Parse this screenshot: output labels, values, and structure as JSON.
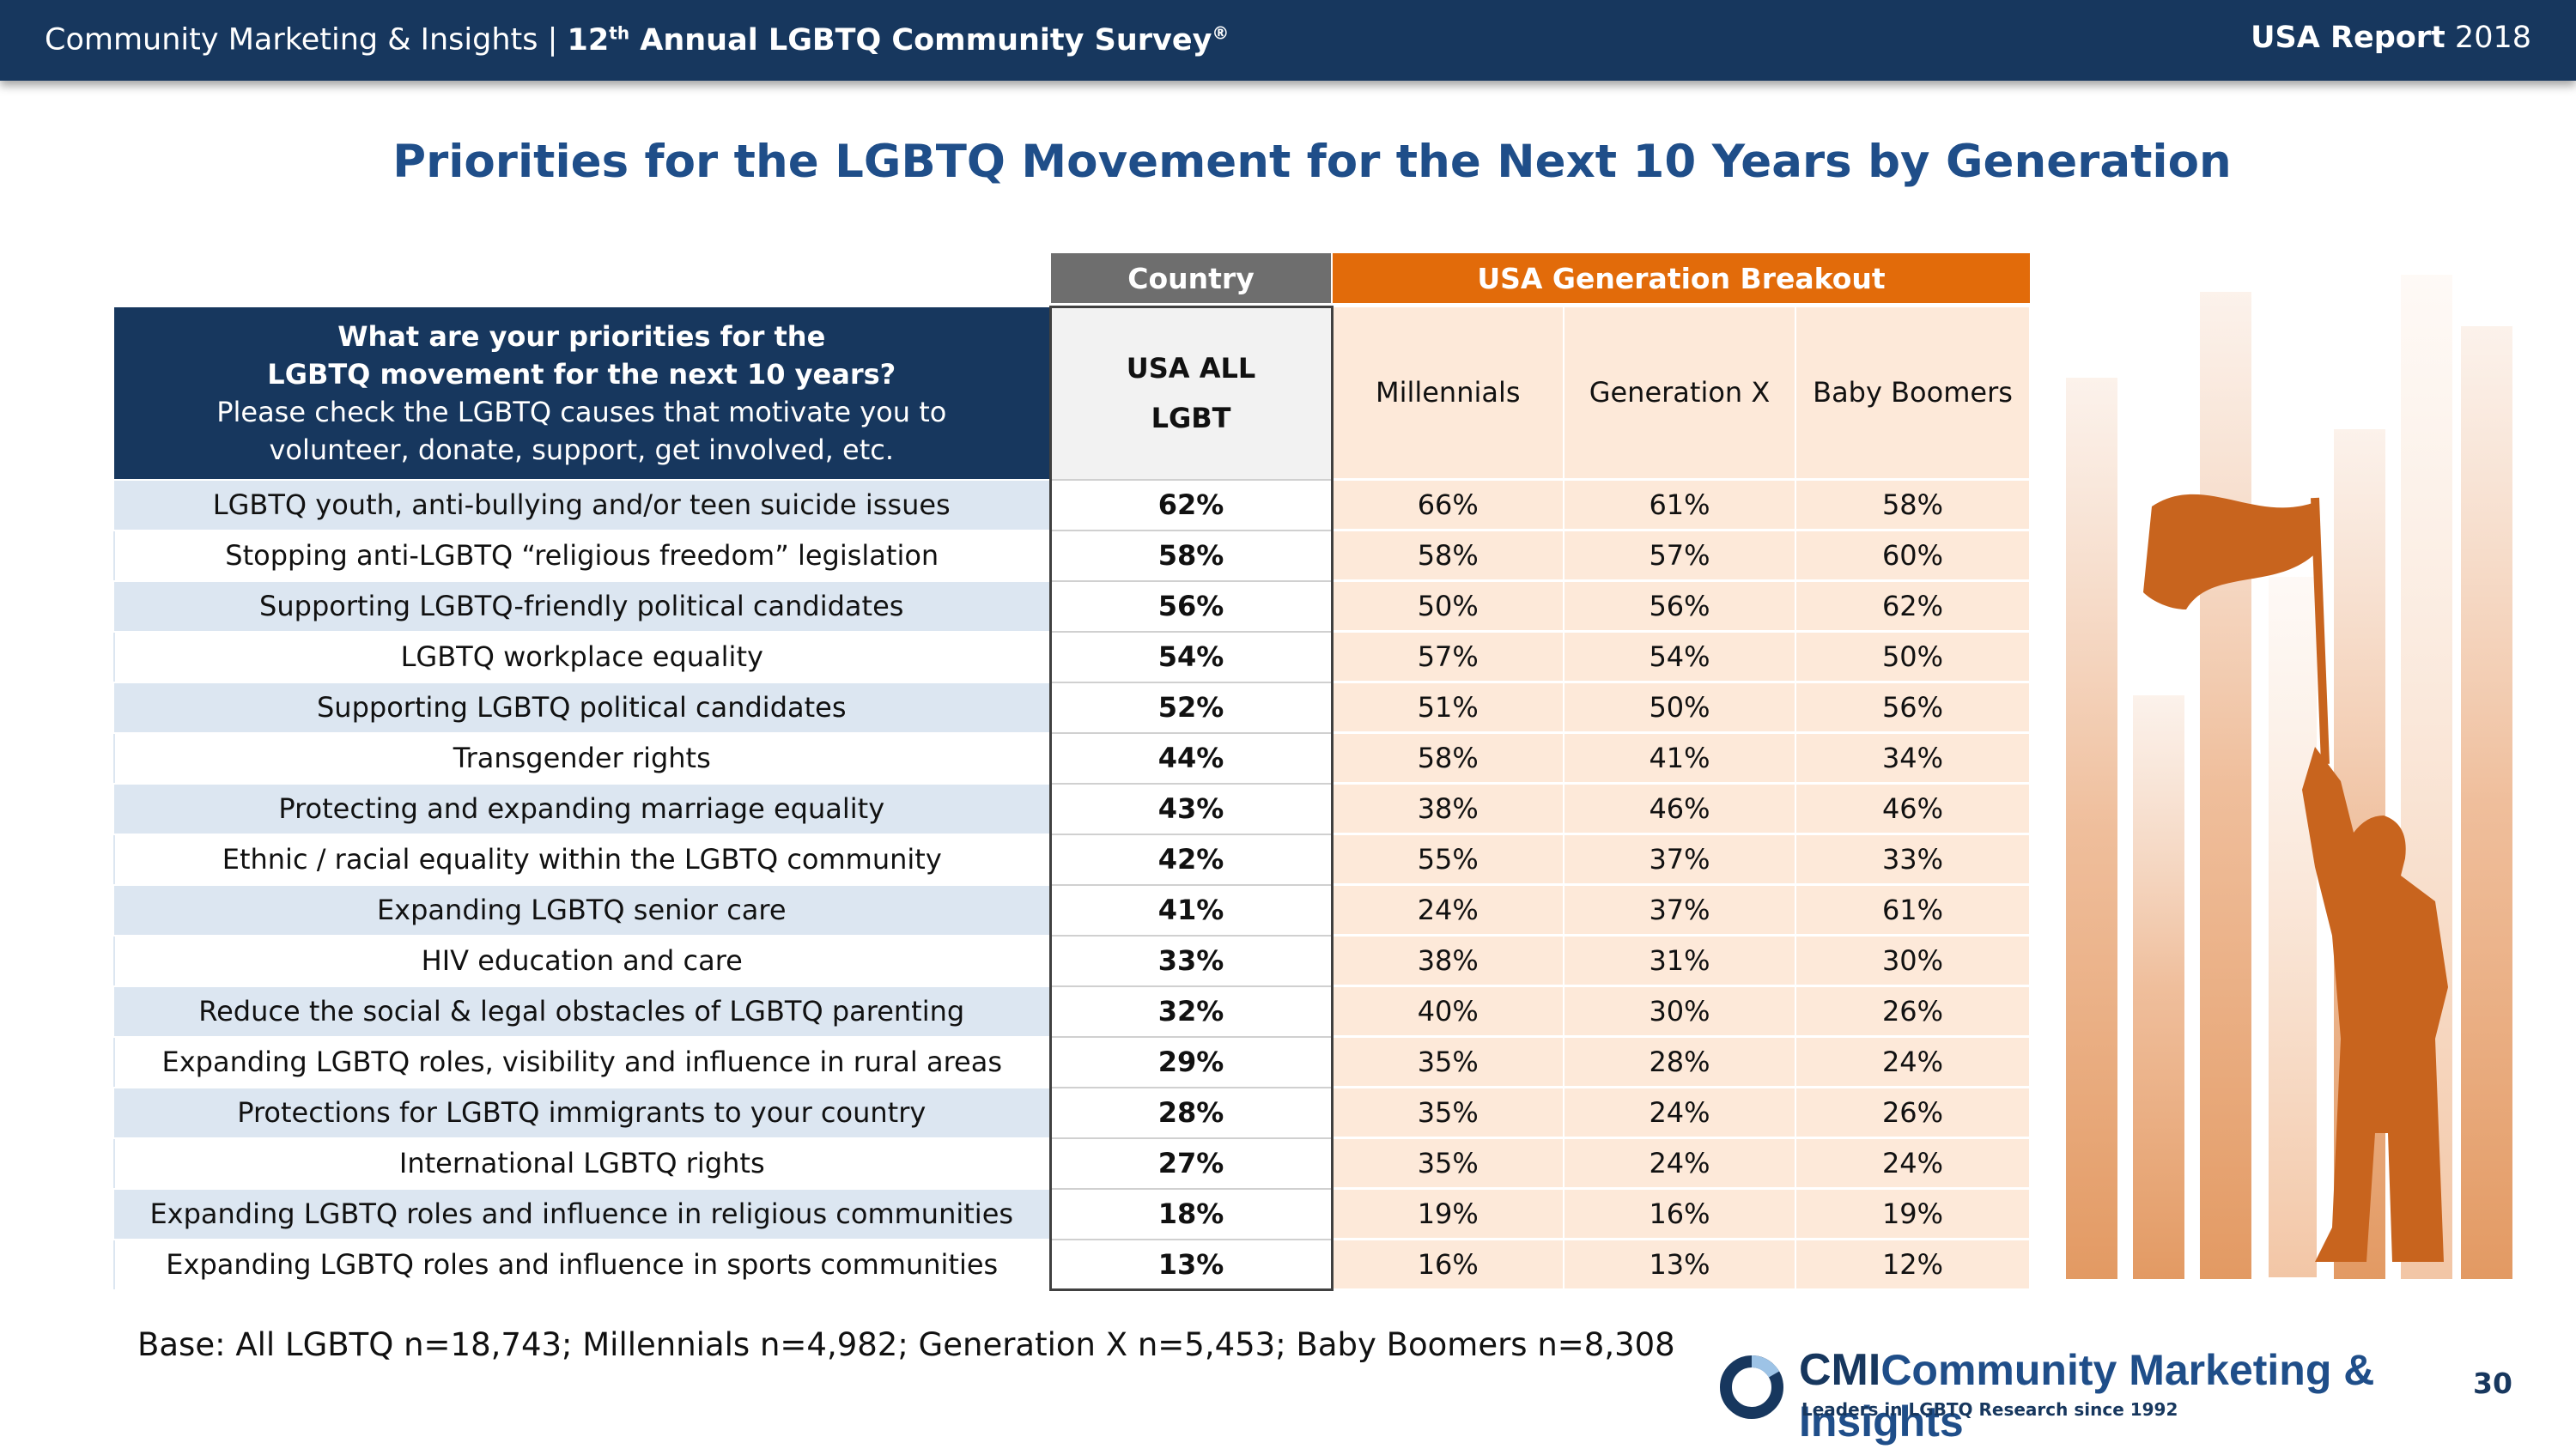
{
  "header": {
    "left_text": "Community Marketing & Insights  |  ",
    "survey_ordinal": "12",
    "survey_ordinal_suffix": "th",
    "survey_name": " Annual LGBTQ Community Survey",
    "survey_mark": "®",
    "report_label": "USA Report",
    "report_year": " 2018"
  },
  "chart_data": {
    "type": "table",
    "title": "Priorities for the LGBTQ Movement for the Next 10 Years by Generation",
    "group_headers": {
      "country": "Country",
      "breakout": "USA Generation Breakout"
    },
    "question": {
      "line1": "What are your priorities for the",
      "line2": "LGBTQ movement for the next 10 years?",
      "line3": "Please check the LGBTQ causes that motivate you to",
      "line4": "volunteer, donate, support, get involved, etc."
    },
    "all_header_line1": "USA ALL",
    "all_header_line2": "LGBT",
    "columns": [
      "Millennials",
      "Generation X",
      "Baby Boomers"
    ],
    "rows": [
      {
        "label": "LGBTQ youth, anti-bullying and/or teen suicide issues",
        "all": "62%",
        "values": [
          "66%",
          "61%",
          "58%"
        ]
      },
      {
        "label": "Stopping anti-LGBTQ “religious freedom” legislation",
        "all": "58%",
        "values": [
          "58%",
          "57%",
          "60%"
        ]
      },
      {
        "label": "Supporting LGBTQ-friendly political candidates",
        "all": "56%",
        "values": [
          "50%",
          "56%",
          "62%"
        ]
      },
      {
        "label": "LGBTQ workplace equality",
        "all": "54%",
        "values": [
          "57%",
          "54%",
          "50%"
        ]
      },
      {
        "label": "Supporting LGBTQ political candidates",
        "all": "52%",
        "values": [
          "51%",
          "50%",
          "56%"
        ]
      },
      {
        "label": "Transgender rights",
        "all": "44%",
        "values": [
          "58%",
          "41%",
          "34%"
        ]
      },
      {
        "label": "Protecting and expanding marriage equality",
        "all": "43%",
        "values": [
          "38%",
          "46%",
          "46%"
        ]
      },
      {
        "label": "Ethnic / racial equality within the LGBTQ community",
        "all": "42%",
        "values": [
          "55%",
          "37%",
          "33%"
        ]
      },
      {
        "label": "Expanding LGBTQ senior care",
        "all": "41%",
        "values": [
          "24%",
          "37%",
          "61%"
        ]
      },
      {
        "label": "HIV education and care",
        "all": "33%",
        "values": [
          "38%",
          "31%",
          "30%"
        ]
      },
      {
        "label": "Reduce the social & legal obstacles of LGBTQ parenting",
        "all": "32%",
        "values": [
          "40%",
          "30%",
          "26%"
        ]
      },
      {
        "label": "Expanding LGBTQ roles, visibility and influence in rural areas",
        "all": "29%",
        "values": [
          "35%",
          "28%",
          "24%"
        ]
      },
      {
        "label": "Protections for LGBTQ immigrants to your country",
        "all": "28%",
        "values": [
          "35%",
          "24%",
          "26%"
        ]
      },
      {
        "label": "International LGBTQ rights",
        "all": "27%",
        "values": [
          "35%",
          "24%",
          "24%"
        ]
      },
      {
        "label": "Expanding LGBTQ roles and influence in religious communities",
        "all": "18%",
        "values": [
          "19%",
          "16%",
          "19%"
        ]
      },
      {
        "label": "Expanding LGBTQ roles and influence in sports communities",
        "all": "13%",
        "values": [
          "16%",
          "13%",
          "12%"
        ]
      }
    ]
  },
  "footer": {
    "base_note": "Base: All LGBTQ n=18,743; Millennials n=4,982; Generation X n=5,453; Baby Boomers n=8,308",
    "logo_cmi": "CMI",
    "logo_name": "Community Marketing & Insights",
    "logo_tagline": "Leaders in LGBTQ Research since 1992",
    "page_number": "30"
  },
  "colors": {
    "navy": "#17375e",
    "title_blue": "#1f4e89",
    "orange": "#e26b0a",
    "peach": "#fde9d9",
    "light_blue_row": "#dce6f1",
    "gray_header": "#6e6e6e"
  },
  "icons": [
    "flag-bearer-illustration",
    "cmi-logo-circle"
  ]
}
